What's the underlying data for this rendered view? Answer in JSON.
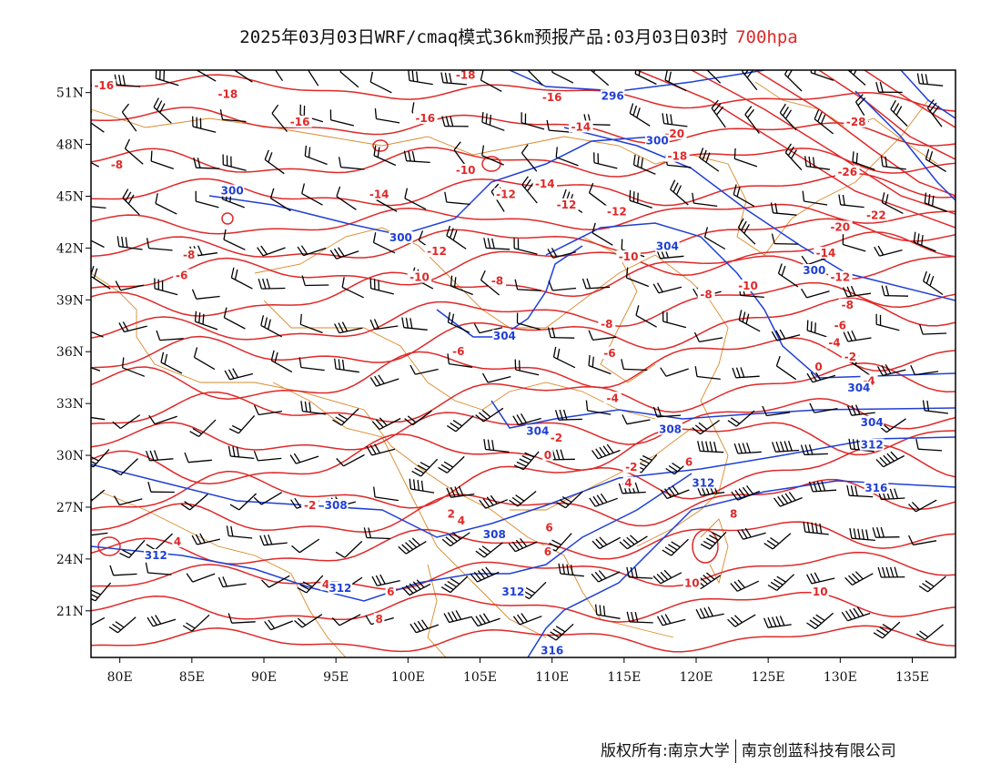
{
  "title": {
    "main": "2025年03月03日WRF/cmaq模式36km预报产品:03月03日03时",
    "level": "700hpa"
  },
  "map": {
    "lon_range": [
      78,
      138
    ],
    "lat_range": [
      18.3,
      52.3
    ],
    "lon_ticks": [
      "80E",
      "85E",
      "90E",
      "95E",
      "100E",
      "105E",
      "110E",
      "115E",
      "120E",
      "125E",
      "130E",
      "135E"
    ],
    "lat_ticks": [
      "51N",
      "48N",
      "45N",
      "42N",
      "39N",
      "36N",
      "33N",
      "30N",
      "27N",
      "24N",
      "21N"
    ],
    "colors": {
      "temperature": "#e02828",
      "geopotential": "#1f3fd6",
      "borders": "#d98a2a",
      "wind": "#000000"
    }
  },
  "temperature_labels": [
    {
      "t": "-16",
      "lon": 78.9,
      "lat": 51.3
    },
    {
      "t": "-18",
      "lon": 87.5,
      "lat": 50.8
    },
    {
      "t": "-16",
      "lon": 92.5,
      "lat": 49.2
    },
    {
      "t": "-16",
      "lon": 101.2,
      "lat": 49.4
    },
    {
      "t": "-18",
      "lon": 104.0,
      "lat": 51.9
    },
    {
      "t": "-16",
      "lon": 110.0,
      "lat": 50.6
    },
    {
      "t": "-14",
      "lon": 112.0,
      "lat": 48.9
    },
    {
      "t": "-20",
      "lon": 118.5,
      "lat": 48.5
    },
    {
      "t": "-18",
      "lon": 118.7,
      "lat": 47.2
    },
    {
      "t": "-28",
      "lon": 131.1,
      "lat": 49.2
    },
    {
      "t": "-26",
      "lon": 130.5,
      "lat": 46.3
    },
    {
      "t": "-22",
      "lon": 132.5,
      "lat": 43.8
    },
    {
      "t": "-20",
      "lon": 130.0,
      "lat": 43.1
    },
    {
      "t": "-14",
      "lon": 109.5,
      "lat": 45.6
    },
    {
      "t": "-12",
      "lon": 111.0,
      "lat": 44.4
    },
    {
      "t": "-12",
      "lon": 114.5,
      "lat": 44.0
    },
    {
      "t": "-14",
      "lon": 98.0,
      "lat": 45.0
    },
    {
      "t": "-12",
      "lon": 102.0,
      "lat": 41.7
    },
    {
      "t": "-10",
      "lon": 115.3,
      "lat": 41.4
    },
    {
      "t": "-10",
      "lon": 100.8,
      "lat": 40.2
    },
    {
      "t": "-8",
      "lon": 106.2,
      "lat": 40.0
    },
    {
      "t": "-8",
      "lon": 120.7,
      "lat": 39.2
    },
    {
      "t": "-10",
      "lon": 123.6,
      "lat": 39.7
    },
    {
      "t": "-12",
      "lon": 130.0,
      "lat": 40.2
    },
    {
      "t": "-14",
      "lon": 129.0,
      "lat": 41.6
    },
    {
      "t": "-8",
      "lon": 79.8,
      "lat": 46.7
    },
    {
      "t": "-8",
      "lon": 84.8,
      "lat": 41.5
    },
    {
      "t": "-6",
      "lon": 84.3,
      "lat": 40.3
    },
    {
      "t": "-8",
      "lon": 113.8,
      "lat": 37.5
    },
    {
      "t": "-6",
      "lon": 114.0,
      "lat": 35.8
    },
    {
      "t": "-6",
      "lon": 103.5,
      "lat": 35.9
    },
    {
      "t": "-8",
      "lon": 130.5,
      "lat": 38.6
    },
    {
      "t": "-6",
      "lon": 130.0,
      "lat": 37.4
    },
    {
      "t": "-4",
      "lon": 129.6,
      "lat": 36.4
    },
    {
      "t": "-2",
      "lon": 130.7,
      "lat": 35.6
    },
    {
      "t": "0",
      "lon": 128.5,
      "lat": 35.0
    },
    {
      "t": "-4",
      "lon": 114.2,
      "lat": 33.2
    },
    {
      "t": "-2",
      "lon": 110.3,
      "lat": 30.9
    },
    {
      "t": "0",
      "lon": 109.7,
      "lat": 29.9
    },
    {
      "t": "-2",
      "lon": 115.5,
      "lat": 29.2
    },
    {
      "t": "4",
      "lon": 115.3,
      "lat": 28.3
    },
    {
      "t": "-2",
      "lon": 93.2,
      "lat": 27.0
    },
    {
      "t": "2",
      "lon": 103.0,
      "lat": 26.5
    },
    {
      "t": "4",
      "lon": 103.7,
      "lat": 26.1
    },
    {
      "t": "6",
      "lon": 109.8,
      "lat": 25.7
    },
    {
      "t": "6",
      "lon": 119.5,
      "lat": 29.5
    },
    {
      "t": "6",
      "lon": 109.7,
      "lat": 24.3
    },
    {
      "t": "8",
      "lon": 122.6,
      "lat": 26.5
    },
    {
      "t": "4",
      "lon": 84.0,
      "lat": 24.9
    },
    {
      "t": "4",
      "lon": 94.3,
      "lat": 22.4
    },
    {
      "t": "6",
      "lon": 98.8,
      "lat": 22.0
    },
    {
      "t": "8",
      "lon": 98.0,
      "lat": 20.4
    },
    {
      "t": "10",
      "lon": 119.7,
      "lat": 22.5
    },
    {
      "t": "10",
      "lon": 128.6,
      "lat": 22.0
    },
    {
      "t": "-4",
      "lon": 132.0,
      "lat": 34.2
    },
    {
      "t": "-10",
      "lon": 104.0,
      "lat": 46.4
    },
    {
      "t": "-12",
      "lon": 106.8,
      "lat": 45.0
    }
  ],
  "height_labels": [
    {
      "t": "296",
      "lon": 114.2,
      "lat": 50.7
    },
    {
      "t": "300",
      "lon": 117.3,
      "lat": 48.1
    },
    {
      "t": "300",
      "lon": 87.8,
      "lat": 45.2
    },
    {
      "t": "300",
      "lon": 99.5,
      "lat": 42.5
    },
    {
      "t": "304",
      "lon": 118.0,
      "lat": 42.0
    },
    {
      "t": "300",
      "lon": 128.2,
      "lat": 40.6
    },
    {
      "t": "304",
      "lon": 106.7,
      "lat": 36.8
    },
    {
      "t": "304",
      "lon": 109.0,
      "lat": 31.3
    },
    {
      "t": "308",
      "lon": 118.2,
      "lat": 31.4
    },
    {
      "t": "304",
      "lon": 131.3,
      "lat": 33.8
    },
    {
      "t": "304",
      "lon": 132.2,
      "lat": 31.8
    },
    {
      "t": "312",
      "lon": 120.5,
      "lat": 28.3
    },
    {
      "t": "308",
      "lon": 95.0,
      "lat": 27.0
    },
    {
      "t": "308",
      "lon": 106.0,
      "lat": 25.3
    },
    {
      "t": "312",
      "lon": 82.5,
      "lat": 24.1
    },
    {
      "t": "312",
      "lon": 95.3,
      "lat": 22.2
    },
    {
      "t": "312",
      "lon": 107.3,
      "lat": 22.0
    },
    {
      "t": "316",
      "lon": 132.5,
      "lat": 28.0
    },
    {
      "t": "312",
      "lon": 132.2,
      "lat": 30.5
    },
    {
      "t": "316",
      "lon": 110.0,
      "lat": 18.6
    }
  ],
  "footer": {
    "left": "版权所有:南京大学",
    "right": "南京创蓝科技有限公司"
  }
}
